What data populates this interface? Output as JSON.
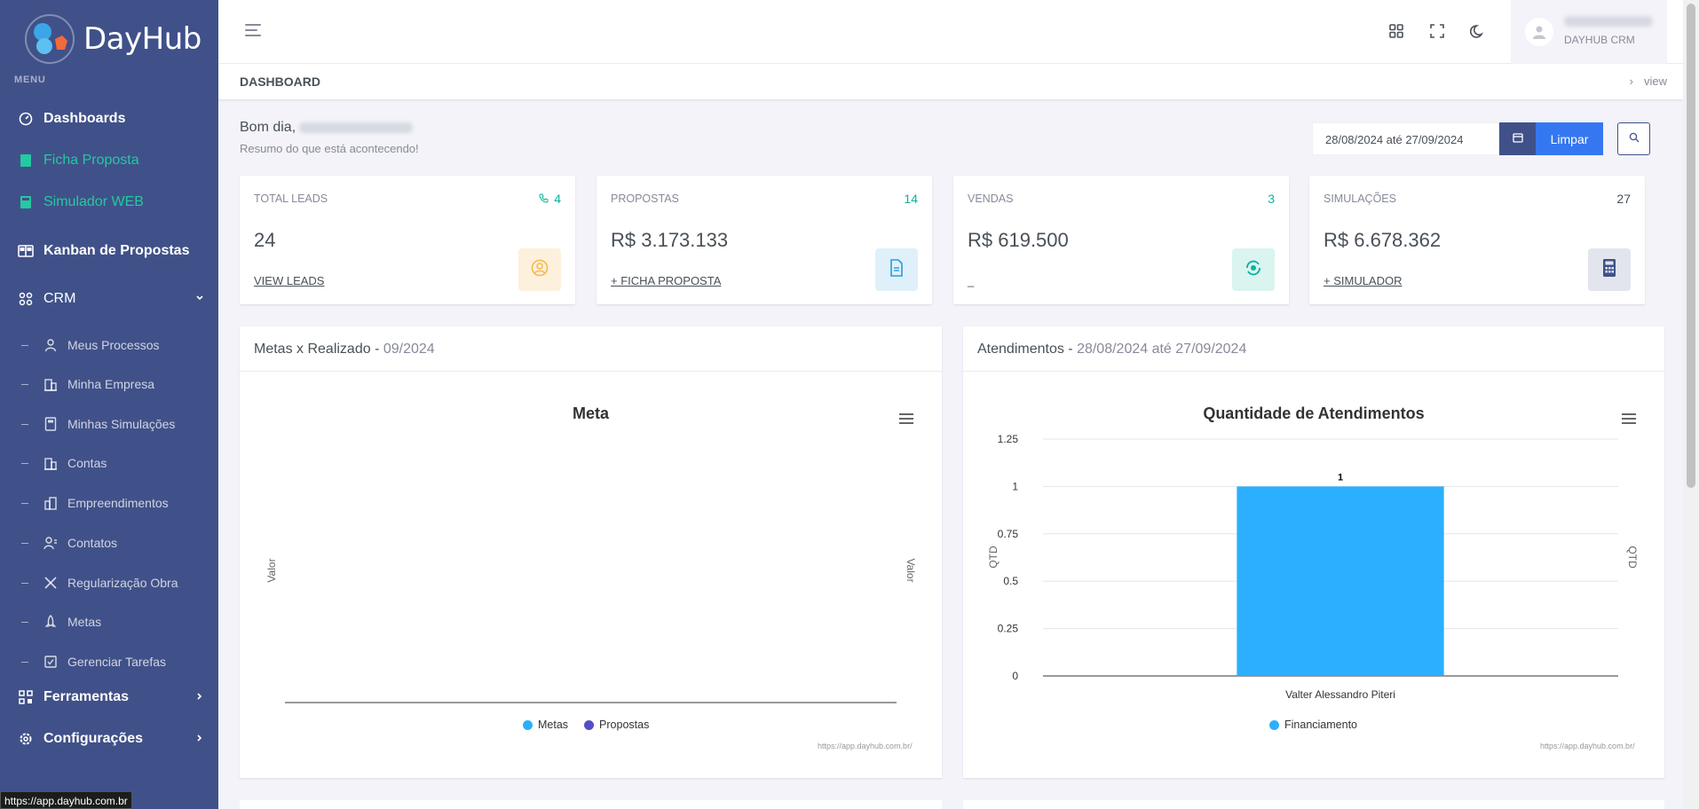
{
  "brand": {
    "name": "DayHub"
  },
  "sidebar": {
    "menu_title": "MENU",
    "items": [
      {
        "label": "Dashboards"
      },
      {
        "label": "Ficha Proposta"
      },
      {
        "label": "Simulador WEB"
      },
      {
        "label": "Kanban de Propostas"
      },
      {
        "label": "CRM"
      },
      {
        "label": "Ferramentas"
      },
      {
        "label": "Configurações"
      }
    ],
    "crm_sub": [
      {
        "label": "Meus Processos",
        "icon": "user-icon"
      },
      {
        "label": "Minha Empresa",
        "icon": "building-icon"
      },
      {
        "label": "Minhas Simulações",
        "icon": "calculator-icon"
      },
      {
        "label": "Contas",
        "icon": "building-icon"
      },
      {
        "label": "Empreendimentos",
        "icon": "buildings-icon"
      },
      {
        "label": "Contatos",
        "icon": "contacts-icon"
      },
      {
        "label": "Regularização Obra",
        "icon": "tools-icon"
      },
      {
        "label": "Metas",
        "icon": "rocket-icon"
      },
      {
        "label": "Gerenciar Tarefas",
        "icon": "checkbox-icon"
      }
    ]
  },
  "status_bar": {
    "url": "https://app.dayhub.com.br"
  },
  "topbar": {
    "user_role": "DAYHUB CRM"
  },
  "page": {
    "title": "DASHBOARD",
    "breadcrumb": "view"
  },
  "greeting": {
    "hello": "Bom dia,",
    "subtitle": "Resumo do que está acontecendo!"
  },
  "filter": {
    "date_range": "28/08/2024 até 27/09/2024",
    "clear_label": "Limpar"
  },
  "cards": [
    {
      "label": "TOTAL LEADS",
      "count": "4",
      "value": "24",
      "link": "VIEW LEADS",
      "badge_color": "#fdf0dd",
      "icon_color": "#f7b84b"
    },
    {
      "label": "PROPOSTAS",
      "count": "14",
      "value": "R$ 3.173.133",
      "link": "+ FICHA PROPOSTA",
      "badge_color": "#dff0fa",
      "icon_color": "#299cdb"
    },
    {
      "label": "VENDAS",
      "count": "3",
      "value": "R$ 619.500",
      "link": "_",
      "badge_color": "#daf4f0",
      "icon_color": "#0ab39c"
    },
    {
      "label": "SIMULAÇÕES",
      "count": "27",
      "value": "R$ 6.678.362",
      "link": "+ SIMULADOR",
      "badge_color": "#e2e5ed",
      "icon_color": "#405189"
    }
  ],
  "panels": {
    "metas": {
      "title": "Metas x Realizado - ",
      "period": "09/2024"
    },
    "atend": {
      "title": "Atendimentos - ",
      "period": "28/08/2024 até 27/09/2024"
    }
  },
  "chart_data": [
    {
      "type": "bar",
      "title": "Meta",
      "ylabel": "Valor",
      "y2label": "Valor",
      "categories": [],
      "series": [
        {
          "name": "Metas",
          "values": [],
          "color": "#2caffe"
        },
        {
          "name": "Propostas",
          "values": [],
          "color": "#544fc5"
        }
      ],
      "credit": "https://app.dayhub.com.br/"
    },
    {
      "type": "bar",
      "title": "Quantidade de Atendimentos",
      "ylabel": "QTD",
      "y2label": "QTD",
      "ylim": [
        0,
        1.25
      ],
      "yticks": [
        "0",
        "0.25",
        "0.5",
        "0.75",
        "1",
        "1.25"
      ],
      "categories": [
        "Valter Alessandro Piteri"
      ],
      "series": [
        {
          "name": "Financiamento",
          "values": [
            1
          ],
          "color": "#2caffe"
        }
      ],
      "data_labels": [
        "1"
      ],
      "credit": "https://app.dayhub.com.br/"
    }
  ]
}
